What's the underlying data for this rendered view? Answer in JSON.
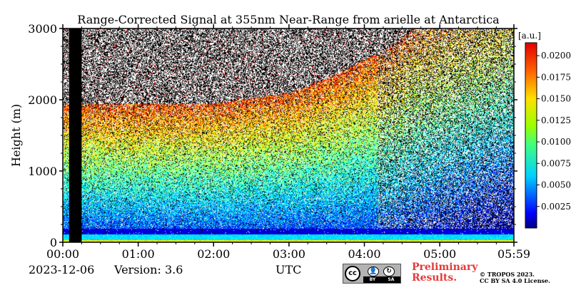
{
  "chart_data": {
    "type": "heatmap",
    "title": "Range-Corrected Signal at 355nm Near-Range from arielle at Antarctica",
    "ylabel": "Height (m)",
    "xlabel": "UTC",
    "ylim": [
      0,
      3000
    ],
    "xlim": [
      "00:00",
      "05:59"
    ],
    "x_ticks": [
      "00:00",
      "01:00",
      "02:00",
      "03:00",
      "04:00",
      "05:00",
      "05:59"
    ],
    "y_ticks": [
      "0",
      "1000",
      "2000",
      "3000"
    ],
    "colorbar": {
      "unit": "[a.u.]",
      "ticks": [
        "0.0025",
        "0.0050",
        "0.0075",
        "0.0100",
        "0.0125",
        "0.0150",
        "0.0175",
        "0.0200"
      ],
      "range": [
        0.0,
        0.0215
      ],
      "colormap": "jet"
    },
    "data_gap": {
      "start": "00:05",
      "end": "00:15"
    },
    "features": {
      "elevated_layer_top_m": [
        1950,
        1950,
        1950,
        2100,
        2300,
        2700,
        3000
      ],
      "elevated_layer_times": [
        "00:15",
        "01:00",
        "02:00",
        "03:00",
        "03:30",
        "04:15",
        "04:40"
      ],
      "near_surface_band_m": [
        0,
        200
      ]
    },
    "grid": false,
    "colors": {
      "high": "#e31a1c",
      "mid": "#7fff00",
      "low": "#0050ff",
      "gap": "#000000"
    }
  },
  "footer": {
    "date": "2023-12-06",
    "version": "Version: 3.6",
    "utc_label": "UTC",
    "preliminary": "Preliminary Results.",
    "copyright_line1": "© TROPOS 2023.",
    "copyright_line2": "CC BY SA 4.0 License."
  },
  "license_badge": {
    "icons": [
      "cc-icon",
      "by-icon",
      "sa-icon"
    ],
    "cc": "cc",
    "by": "BY",
    "sa": "SA"
  }
}
